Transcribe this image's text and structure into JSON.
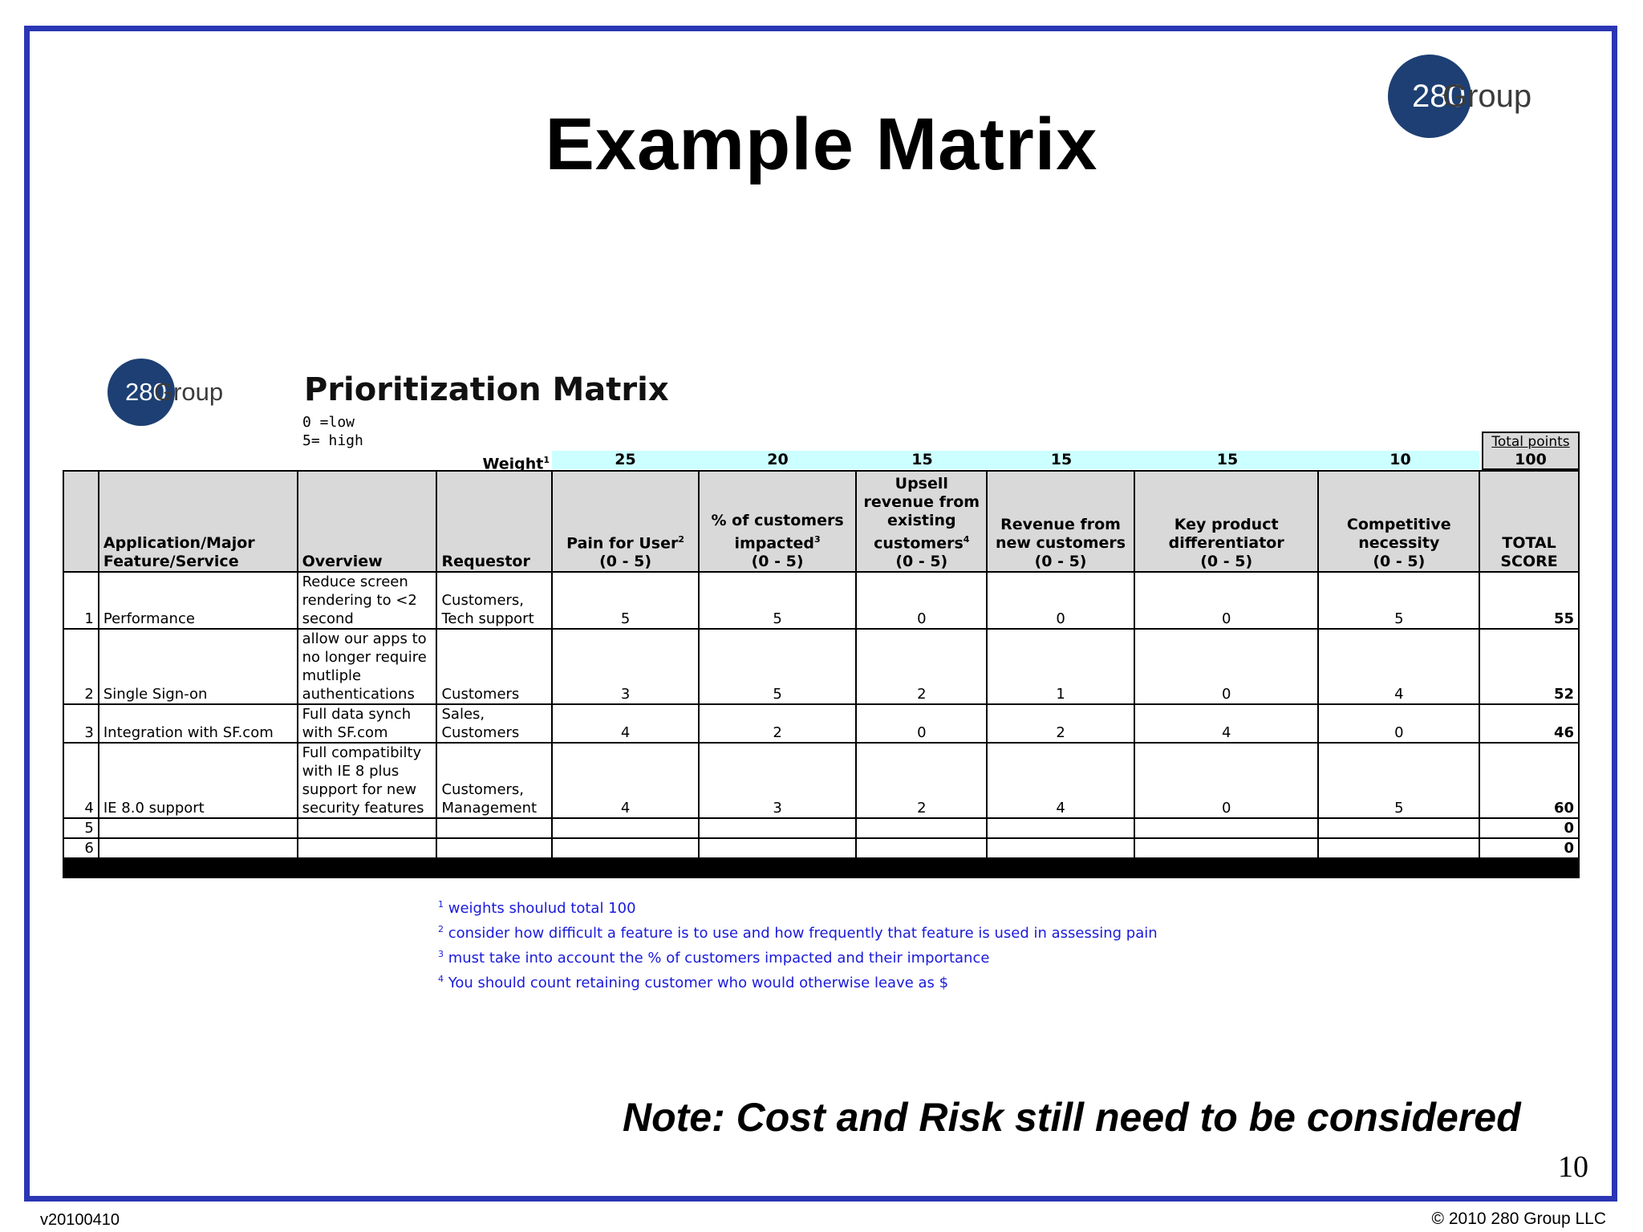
{
  "slide": {
    "title": "Example Matrix",
    "note": "Note: Cost and Risk still need to be considered",
    "page_number": "10",
    "version": "v20100410",
    "copyright": "© 2010 280 Group LLC",
    "logo_mark": "280",
    "logo_word": "Group",
    "border_color": "#2a36b4"
  },
  "sheet": {
    "title": "Prioritization Matrix",
    "scale_low": "0 =low",
    "scale_high": "5= high",
    "weight_label": "Weight",
    "weight_label_note": "1",
    "weights": [
      "25",
      "20",
      "15",
      "15",
      "15",
      "10"
    ],
    "total_points_label": "Total points",
    "total_points_value": "100",
    "headers": {
      "feature": "Application/Major Feature/Service",
      "overview": "Overview",
      "requestor": "Requestor",
      "pain": "Pain for User",
      "pain_note": "2",
      "pain_range": "(0 - 5)",
      "customers": "% of customers impacted",
      "customers_note": "3",
      "customers_range": "(0 - 5)",
      "upsell": "Upsell revenue from existing customers",
      "upsell_note": "4",
      "upsell_range": "(0 - 5)",
      "new_revenue": "Revenue from new customers",
      "new_revenue_range": "(0 - 5)",
      "differentiator": "Key product differentiator",
      "differentiator_range": "(0 - 5)",
      "competitive": "Competitive necessity",
      "competitive_range": "(0 - 5)",
      "total": "TOTAL SCORE"
    },
    "rows": [
      {
        "num": "1",
        "feature": "Performance",
        "overview": "Reduce screen rendering to <2 second",
        "requestor": "Customers, Tech support",
        "scores": [
          "5",
          "5",
          "0",
          "0",
          "0",
          "5"
        ],
        "total": "55"
      },
      {
        "num": "2",
        "feature": "Single Sign-on",
        "overview": "allow our apps to no longer require mutliple authentications",
        "requestor": "Customers",
        "scores": [
          "3",
          "5",
          "2",
          "1",
          "0",
          "4"
        ],
        "total": "52"
      },
      {
        "num": "3",
        "feature": "Integration with SF.com",
        "overview": "Full data synch with SF.com",
        "requestor": "Sales, Customers",
        "scores": [
          "4",
          "2",
          "0",
          "2",
          "4",
          "0"
        ],
        "total": "46"
      },
      {
        "num": "4",
        "feature": "IE 8.0 support",
        "overview": "Full compatibilty with IE 8 plus support for new security features",
        "requestor": "Customers, Management",
        "scores": [
          "4",
          "3",
          "2",
          "4",
          "0",
          "5"
        ],
        "total": "60"
      },
      {
        "num": "5",
        "feature": "",
        "overview": "",
        "requestor": "",
        "scores": [
          "",
          "",
          "",
          "",
          "",
          ""
        ],
        "total": "0"
      },
      {
        "num": "6",
        "feature": "",
        "overview": "",
        "requestor": "",
        "scores": [
          "",
          "",
          "",
          "",
          "",
          ""
        ],
        "total": "0"
      }
    ],
    "footnotes": [
      {
        "mark": "1",
        "text": "weights shoulud total 100"
      },
      {
        "mark": "2",
        "text": "consider how difficult a feature is to use and how frequently that feature is used in assessing pain"
      },
      {
        "mark": "3",
        "text": "must take into account the % of customers impacted and their importance"
      },
      {
        "mark": "4",
        "text": "You should count retaining customer who would otherwise leave as $"
      }
    ]
  }
}
